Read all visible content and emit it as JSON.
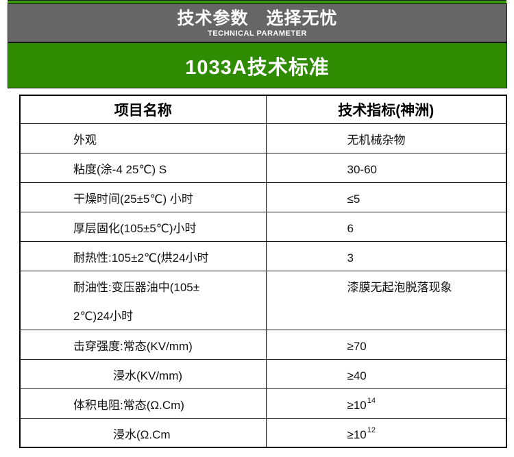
{
  "header": {
    "title": "技术参数　选择无忧",
    "subtitle": "TECHNICAL PARAMETER",
    "bg_color": "#666666",
    "text_color": "#ffffff"
  },
  "accent": {
    "strip_color": "#3a9a06"
  },
  "banner": {
    "title": "1033A技术标准",
    "bg_color": "#2f8b02",
    "text_color": "#ffffff"
  },
  "table": {
    "border_color": "#000000",
    "columns": [
      "项目名称",
      "技术指标(神洲)"
    ],
    "rows": [
      {
        "name": "外观",
        "value": "无机械杂物"
      },
      {
        "name": "粘度(涂-4 25℃) S",
        "value": "30-60"
      },
      {
        "name": "干燥时间(25±5℃) 小时",
        "value": "≤5"
      },
      {
        "name": "厚层固化(105±5℃)小时",
        "value": "6"
      },
      {
        "name": "耐热性:105±2℃(烘24小时",
        "value": "3"
      },
      {
        "name_line1": "耐油性:变压器油中(105±",
        "name_line2": "2℃)24小时",
        "value": "漆膜无起泡脱落现象"
      },
      {
        "name": "击穿强度:常态(KV/mm)",
        "value": "≥70"
      },
      {
        "name": "浸水(KV/mm)",
        "value": "≥40"
      },
      {
        "name": "体积电阻:常态(Ω.Cm)",
        "value": "≥10",
        "value_sup": "14"
      },
      {
        "name": "浸水(Ω.Cm",
        "value": "≥10",
        "value_sup": "12"
      }
    ]
  }
}
